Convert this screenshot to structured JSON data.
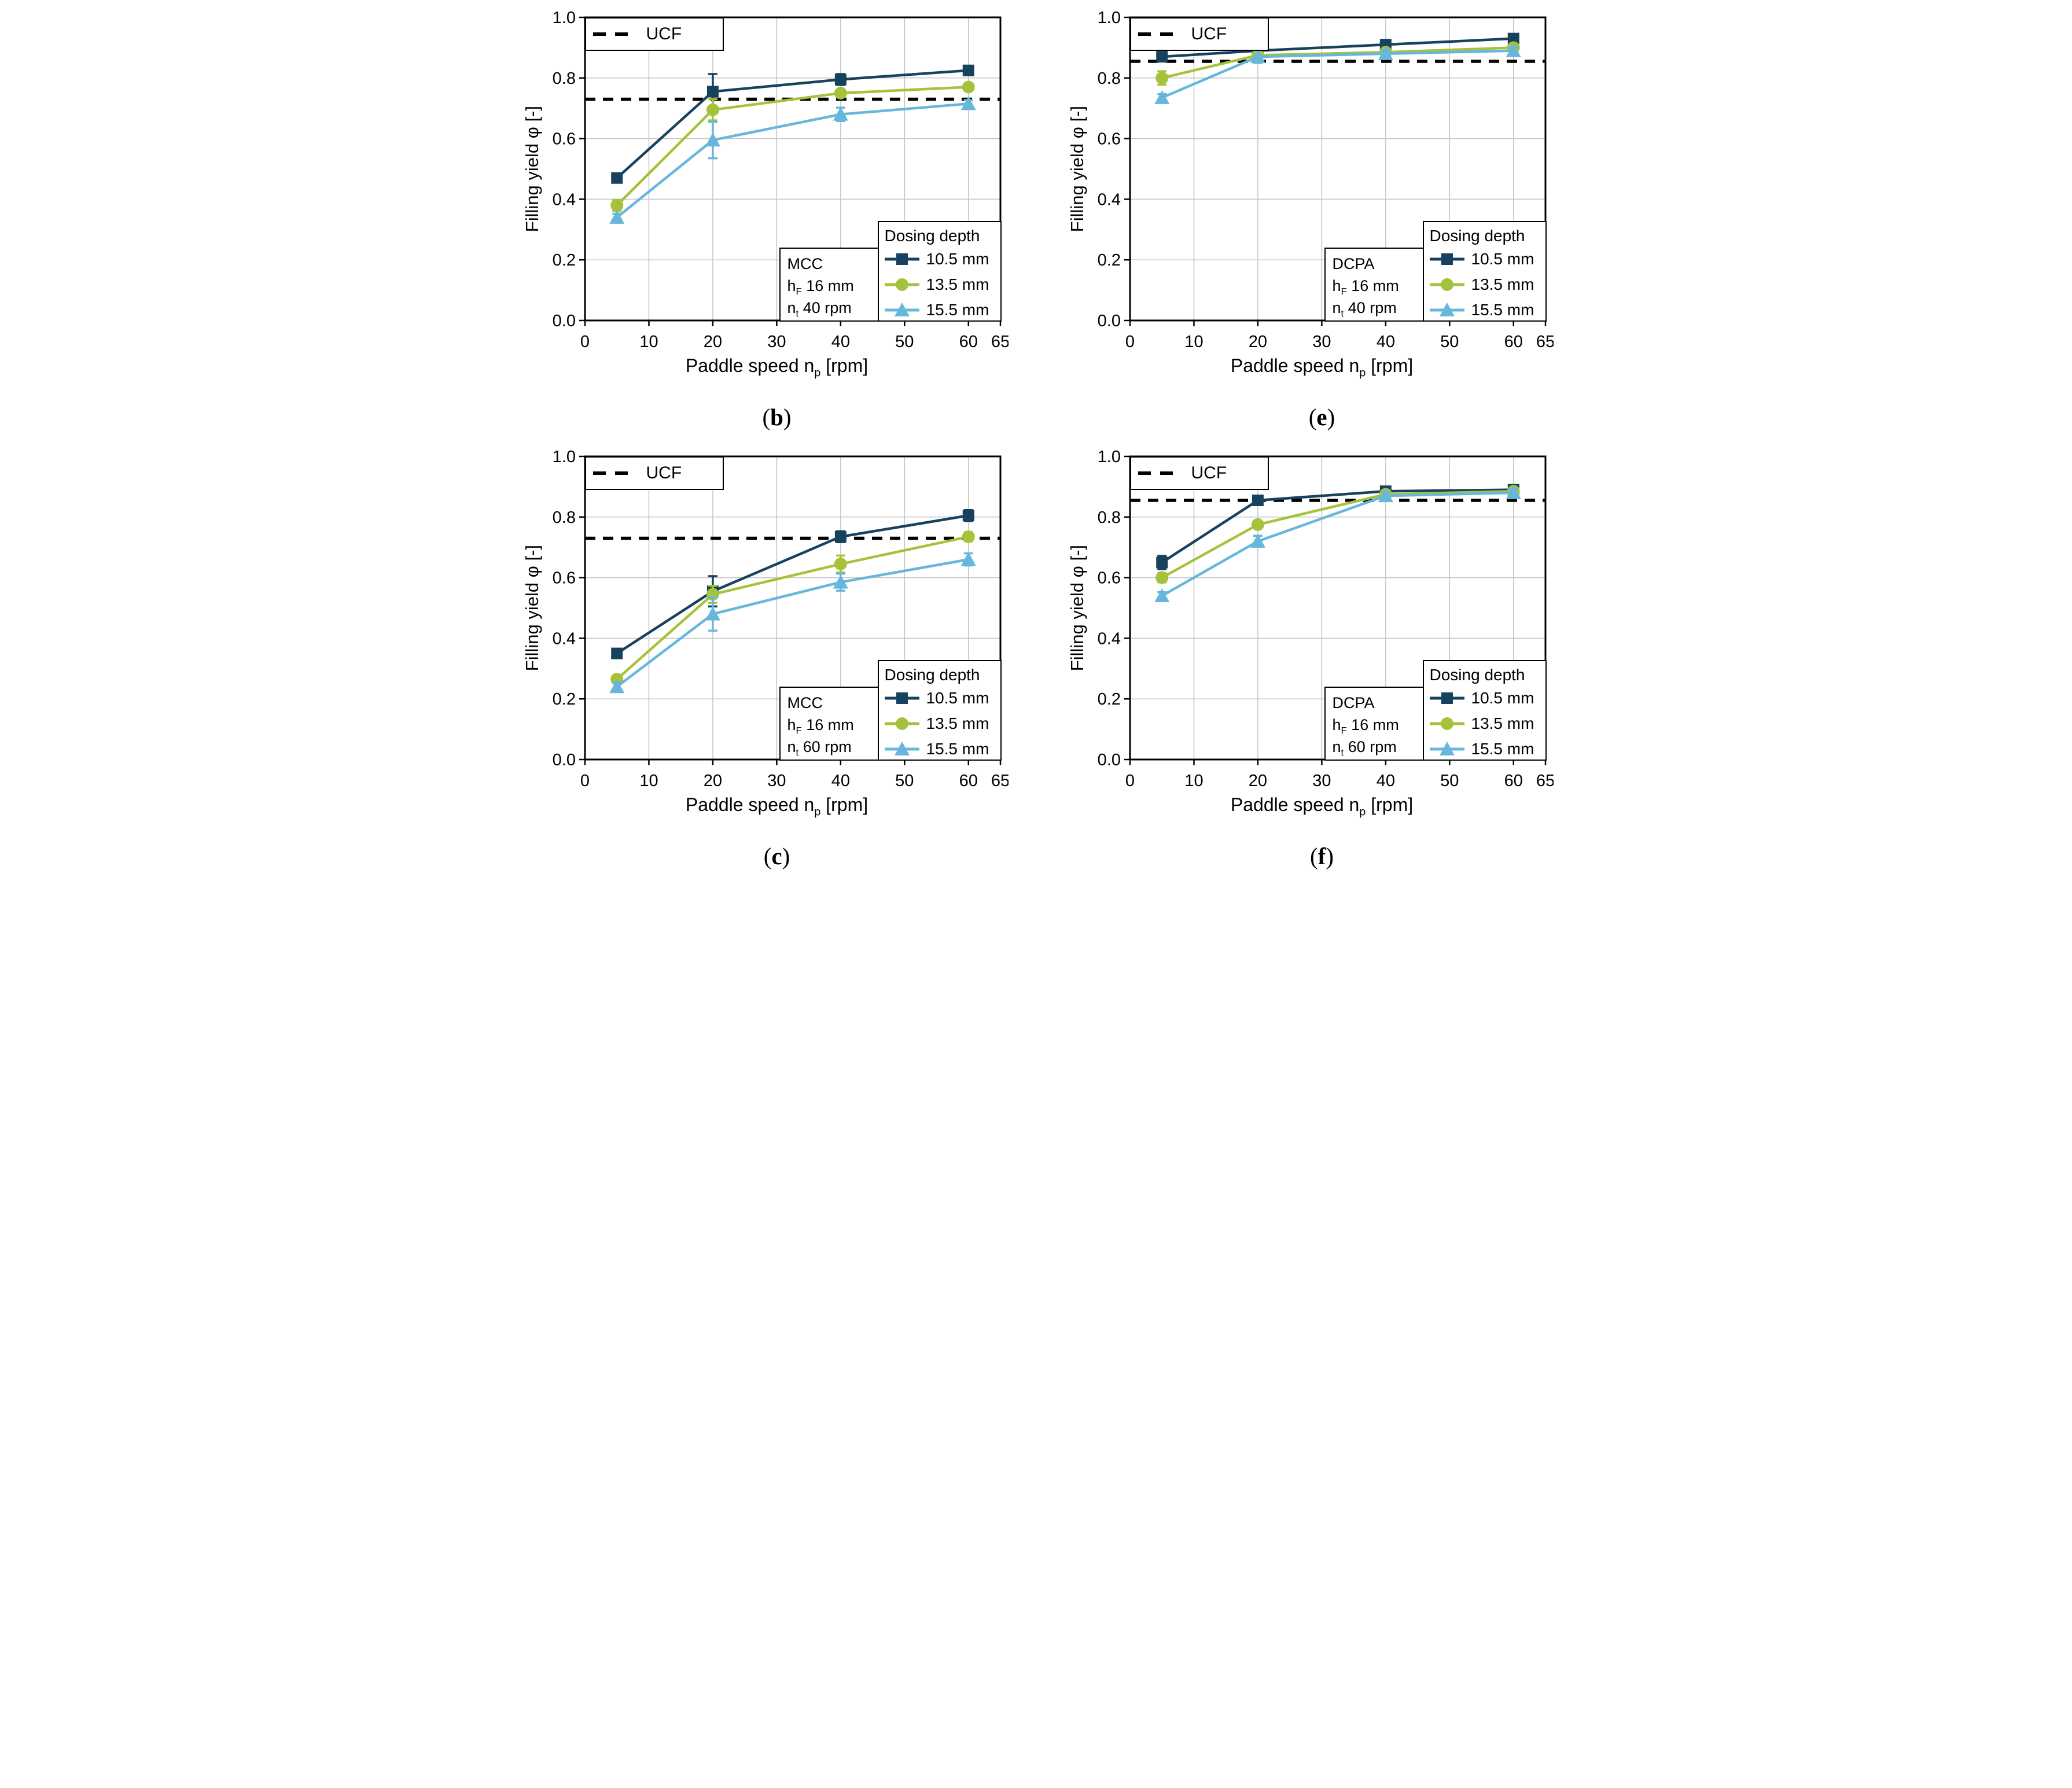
{
  "punct": {
    "open": "(",
    "close": ")"
  },
  "axis": {
    "ylabel": "Filling yield φ [-]",
    "xlabel_base": "Paddle speed n",
    "xlabel_sub": "p",
    "xlabel_unit": " [rpm]",
    "xticks": [
      0,
      10,
      20,
      30,
      40,
      50,
      60,
      65
    ],
    "ytick_values": [
      0,
      0.2,
      0.4,
      0.6,
      0.8,
      1.0
    ],
    "ytick_labels": [
      "0.0",
      "0.2",
      "0.4",
      "0.6",
      "0.8",
      "1.0"
    ],
    "xlim": [
      0,
      65
    ],
    "ylim": [
      0,
      1
    ],
    "grid_x": [
      10,
      20,
      30,
      40,
      50,
      60
    ],
    "grid_y": [
      0.2,
      0.4,
      0.6,
      0.8
    ],
    "grid_on": true
  },
  "colors": {
    "navy": "#16425e",
    "green": "#a6c23b",
    "blue": "#67b7dc",
    "ucf": "#000000",
    "grid": "#c4c4c4",
    "frame": "#000000"
  },
  "ucf_legend_label": "UCF",
  "dosing_legend": {
    "title": "Dosing depth",
    "entries": [
      {
        "label": "10.5 mm",
        "marker": "square",
        "color_key": "navy"
      },
      {
        "label": "13.5 mm",
        "marker": "circle",
        "color_key": "green"
      },
      {
        "label": "15.5 mm",
        "marker": "triangle",
        "color_key": "blue"
      }
    ]
  },
  "chart_data": [
    {
      "type": "line",
      "panel_letter": "b",
      "legend_position": "bottom-right",
      "info": {
        "material": "MCC",
        "hf_base": "h",
        "hf_sub": "F",
        "hf_value": " 16 mm",
        "nt_base": "n",
        "nt_sub": "t",
        "nt_value": " 40 rpm"
      },
      "ucf_value": 0.73,
      "x": [
        5,
        20,
        40,
        60
      ],
      "series": [
        {
          "name": "10.5 mm",
          "marker": "square",
          "color_key": "navy",
          "values": [
            0.47,
            0.755,
            0.795,
            0.825
          ],
          "errors": [
            0.012,
            0.058,
            0.018,
            0.012
          ]
        },
        {
          "name": "13.5 mm",
          "marker": "circle",
          "color_key": "green",
          "values": [
            0.38,
            0.695,
            0.75,
            0.77
          ],
          "errors": [
            0.018,
            0.035,
            0.012,
            0.01
          ]
        },
        {
          "name": "15.5 mm",
          "marker": "triangle",
          "color_key": "blue",
          "values": [
            0.34,
            0.595,
            0.68,
            0.715
          ],
          "errors": [
            0.012,
            0.06,
            0.022,
            0.012
          ]
        }
      ]
    },
    {
      "type": "line",
      "panel_letter": "e",
      "legend_position": "bottom-right",
      "info": {
        "material": "DCPA",
        "hf_base": "h",
        "hf_sub": "F",
        "hf_value": " 16 mm",
        "nt_base": "n",
        "nt_sub": "t",
        "nt_value": " 40 rpm"
      },
      "ucf_value": 0.855,
      "x": [
        5,
        20,
        40,
        60
      ],
      "series": [
        {
          "name": "10.5 mm",
          "marker": "square",
          "color_key": "navy",
          "values": [
            0.87,
            0.89,
            0.91,
            0.93
          ],
          "errors": [
            0.015,
            0.012,
            0.012,
            0.012
          ]
        },
        {
          "name": "13.5 mm",
          "marker": "circle",
          "color_key": "green",
          "values": [
            0.8,
            0.875,
            0.885,
            0.9
          ],
          "errors": [
            0.022,
            0.018,
            0.012,
            0.012
          ]
        },
        {
          "name": "15.5 mm",
          "marker": "triangle",
          "color_key": "blue",
          "values": [
            0.735,
            0.87,
            0.88,
            0.89
          ],
          "errors": [
            0.012,
            0.02,
            0.012,
            0.012
          ]
        }
      ]
    },
    {
      "type": "line",
      "panel_letter": "c",
      "legend_position": "bottom-right",
      "info": {
        "material": "MCC",
        "hf_base": "h",
        "hf_sub": "F",
        "hf_value": " 16 mm",
        "nt_base": "n",
        "nt_sub": "t",
        "nt_value": " 60 rpm"
      },
      "ucf_value": 0.73,
      "x": [
        5,
        20,
        40,
        60
      ],
      "series": [
        {
          "name": "10.5 mm",
          "marker": "square",
          "color_key": "navy",
          "values": [
            0.35,
            0.555,
            0.735,
            0.805
          ],
          "errors": [
            0.012,
            0.05,
            0.018,
            0.018
          ]
        },
        {
          "name": "13.5 mm",
          "marker": "circle",
          "color_key": "green",
          "values": [
            0.265,
            0.545,
            0.645,
            0.735
          ],
          "errors": [
            0.012,
            0.028,
            0.028,
            0.015
          ]
        },
        {
          "name": "15.5 mm",
          "marker": "triangle",
          "color_key": "blue",
          "values": [
            0.24,
            0.48,
            0.585,
            0.66
          ],
          "errors": [
            0.012,
            0.055,
            0.028,
            0.02
          ]
        }
      ]
    },
    {
      "type": "line",
      "panel_letter": "f",
      "legend_position": "bottom-right",
      "info": {
        "material": "DCPA",
        "hf_base": "h",
        "hf_sub": "F",
        "hf_value": " 16 mm",
        "nt_base": "n",
        "nt_sub": "t",
        "nt_value": " 60 rpm"
      },
      "ucf_value": 0.855,
      "x": [
        5,
        20,
        40,
        60
      ],
      "series": [
        {
          "name": "10.5 mm",
          "marker": "square",
          "color_key": "navy",
          "values": [
            0.65,
            0.855,
            0.885,
            0.89
          ],
          "errors": [
            0.022,
            0.012,
            0.012,
            0.015
          ]
        },
        {
          "name": "13.5 mm",
          "marker": "circle",
          "color_key": "green",
          "values": [
            0.6,
            0.775,
            0.875,
            0.885
          ],
          "errors": [
            0.015,
            0.012,
            0.012,
            0.012
          ]
        },
        {
          "name": "15.5 mm",
          "marker": "triangle",
          "color_key": "blue",
          "values": [
            0.54,
            0.72,
            0.87,
            0.88
          ],
          "errors": [
            0.012,
            0.018,
            0.012,
            0.012
          ]
        }
      ]
    }
  ]
}
